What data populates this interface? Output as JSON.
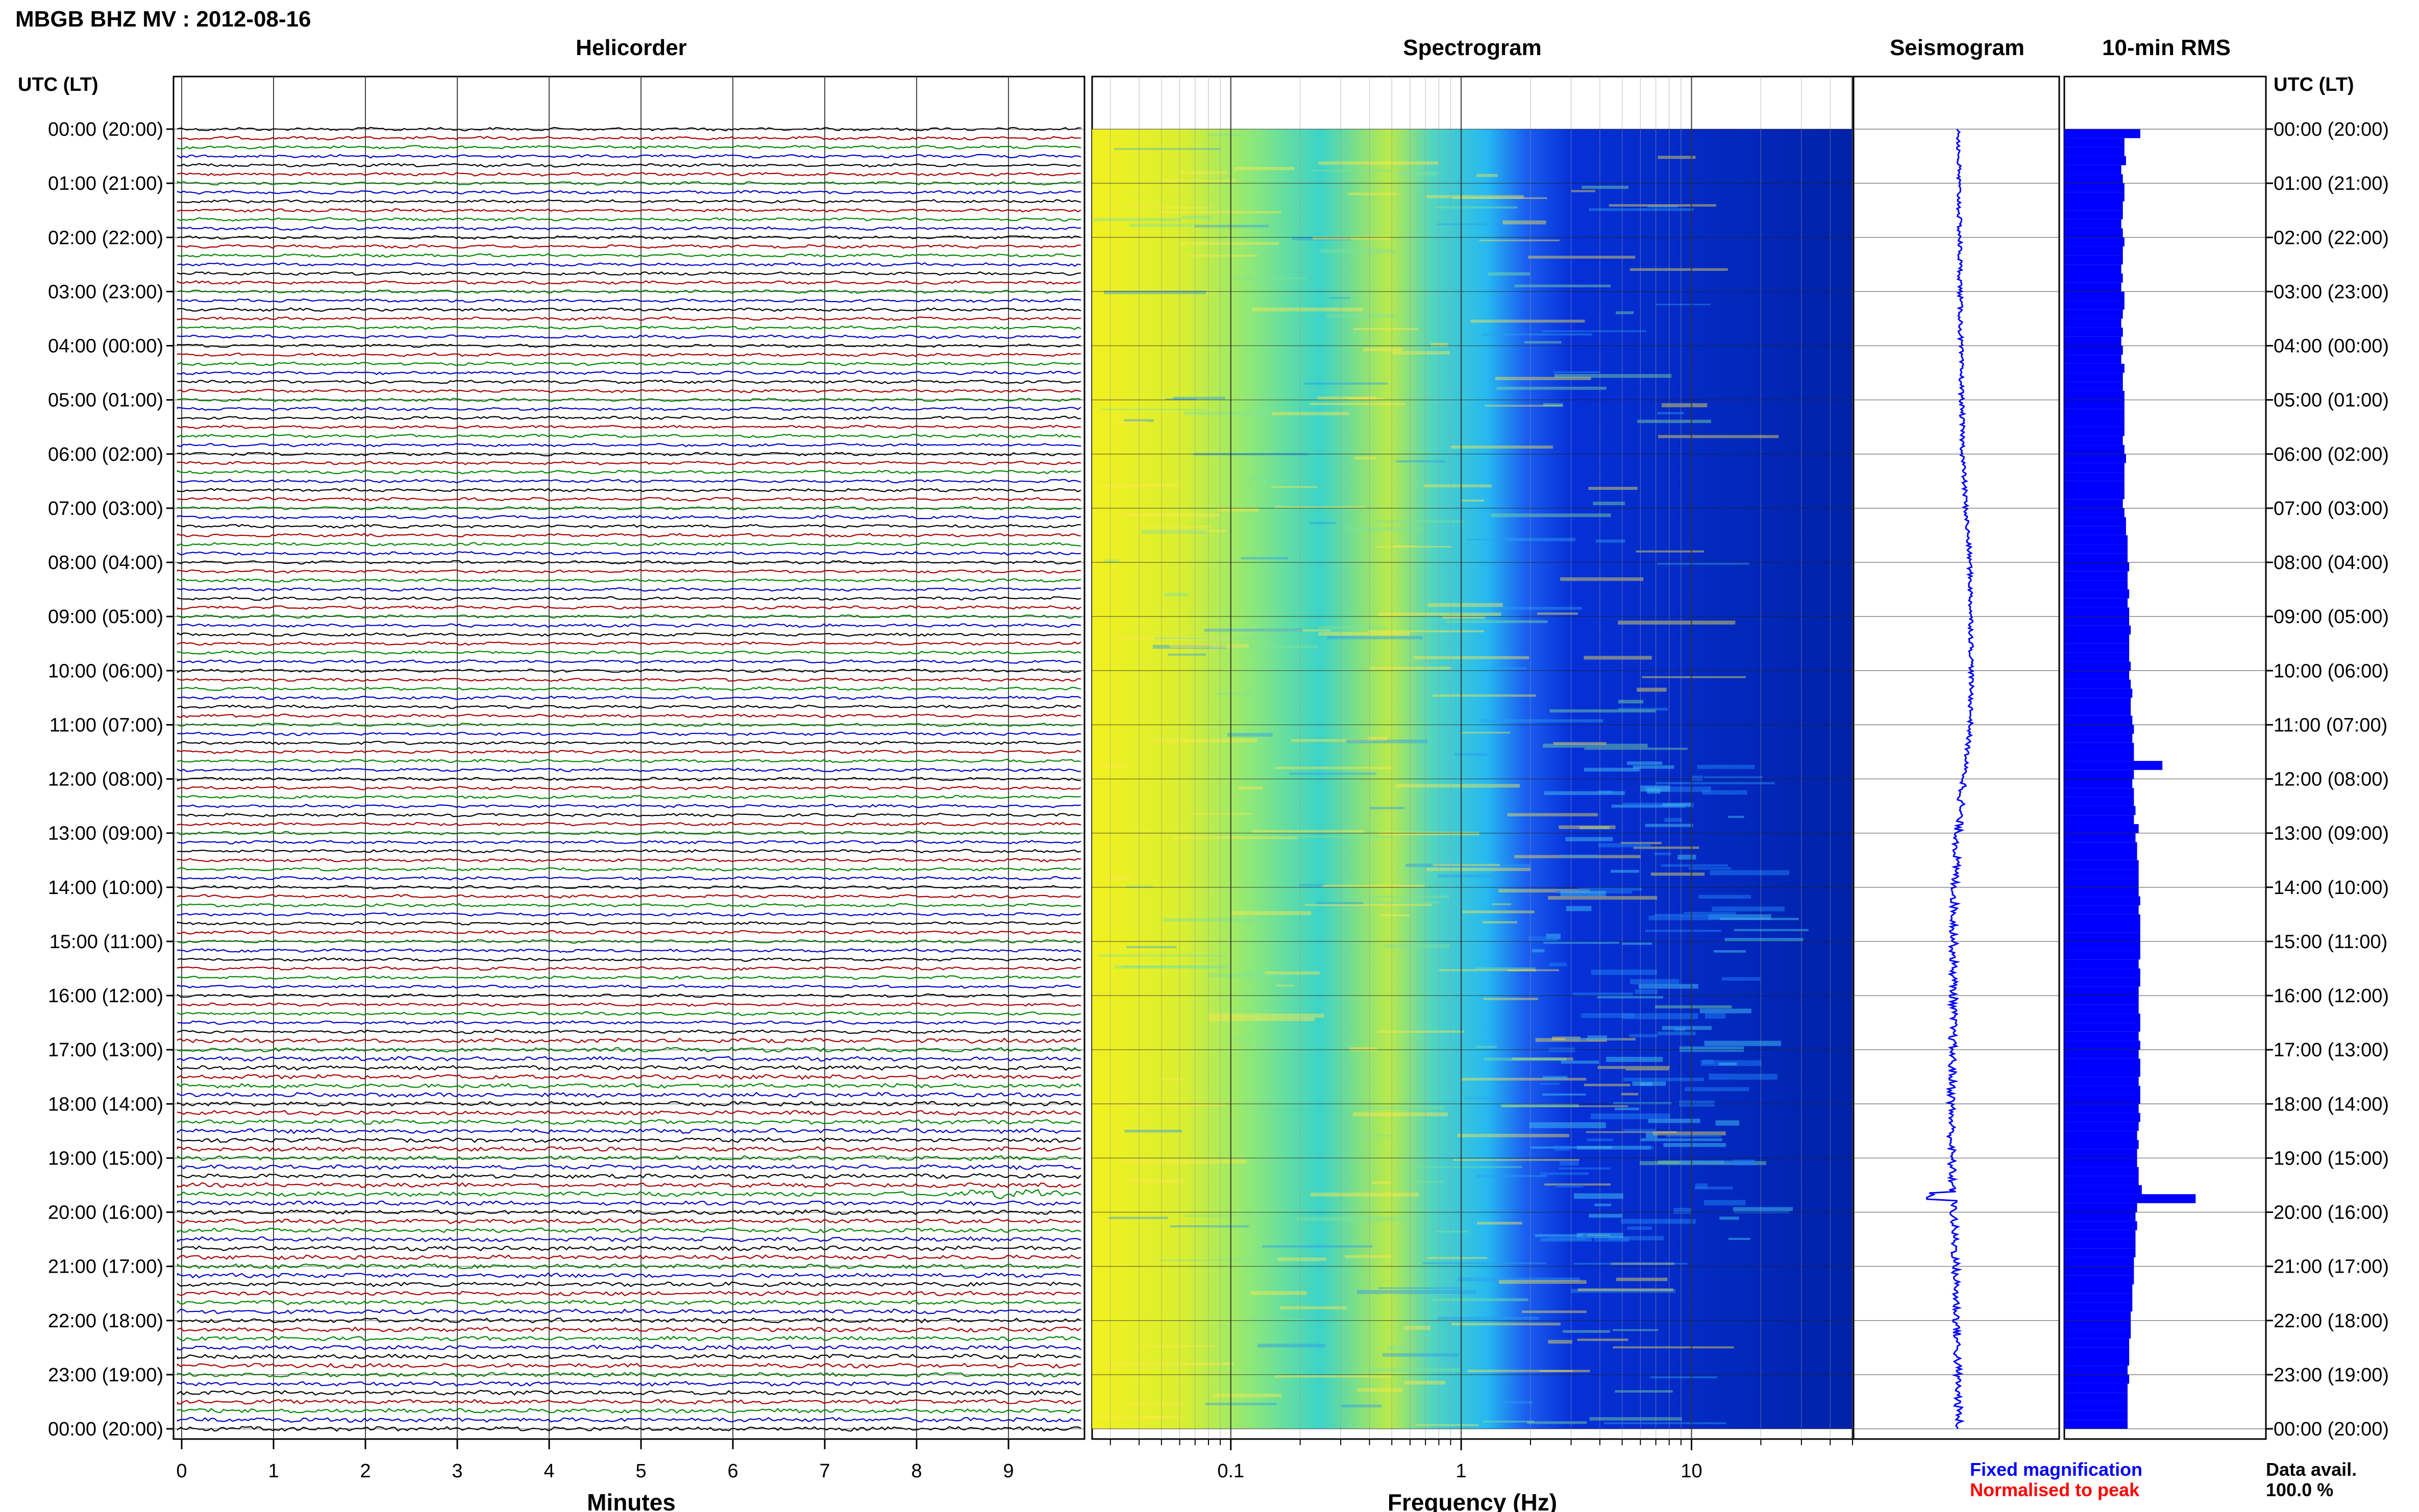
{
  "header": {
    "station_title": "MBGB BHZ MV : 2012-08-16",
    "panel_titles": {
      "helicorder": "Helicorder",
      "spectrogram": "Spectrogram",
      "seismogram": "Seismogram",
      "rms": "10-min RMS"
    },
    "time_axis_label_left": "UTC (LT)",
    "time_axis_label_right": "UTC (LT)"
  },
  "time_labels": [
    "00:00 (20:00)",
    "01:00 (21:00)",
    "02:00 (22:00)",
    "03:00 (23:00)",
    "04:00 (00:00)",
    "05:00 (01:00)",
    "06:00 (02:00)",
    "07:00 (03:00)",
    "08:00 (04:00)",
    "09:00 (05:00)",
    "10:00 (06:00)",
    "11:00 (07:00)",
    "12:00 (08:00)",
    "13:00 (09:00)",
    "14:00 (10:00)",
    "15:00 (11:00)",
    "16:00 (12:00)",
    "17:00 (13:00)",
    "18:00 (14:00)",
    "19:00 (15:00)",
    "20:00 (16:00)",
    "21:00 (17:00)",
    "22:00 (18:00)",
    "23:00 (19:00)",
    "00:00 (20:00)"
  ],
  "footer": {
    "minutes_label": "Minutes",
    "frequency_label": "Frequency (Hz)",
    "legend_fixed": "Fixed magnification",
    "legend_normalised": "Normalised to peak",
    "data_avail_label": "Data avail.",
    "data_avail_value": "100.0 %"
  },
  "colors": {
    "legend_fixed": "#0000ff",
    "legend_normalised": "#ff0000",
    "helicorder_traces": [
      "#000000",
      "#aa0000",
      "#008800",
      "#0000cc"
    ],
    "rms_bars": "#0000ff",
    "seismogram_trace": "#0000ff"
  },
  "chart_data": [
    {
      "type": "line",
      "panel": "helicorder",
      "title": "Helicorder",
      "xlabel": "Minutes",
      "ylabel": "UTC (LT)",
      "x_ticks": [
        "0",
        "1",
        "2",
        "3",
        "4",
        "5",
        "6",
        "7",
        "8",
        "9"
      ],
      "xlim": [
        0,
        10
      ],
      "traces_per_hour": 6,
      "total_traces": 145,
      "trace_color_cycle": [
        "black",
        "dark-red",
        "green",
        "blue"
      ],
      "notable_event": "19:50 (15:50)"
    },
    {
      "type": "heatmap",
      "panel": "spectrogram",
      "title": "Spectrogram",
      "xlabel": "Frequency (Hz)",
      "x_scale": "log",
      "x_ticks": [
        "0.1",
        "1",
        "10"
      ],
      "xlim": [
        0.025,
        50
      ],
      "colormap": "jet (low = dark blue, high = yellow)"
    },
    {
      "type": "line",
      "panel": "seismogram",
      "title": "Seismogram",
      "note": "24-hour long-period trace, drifting right until ~08:00–11:00 then back left, spike near 19:40"
    },
    {
      "type": "bar",
      "panel": "rms",
      "title": "10-min RMS",
      "orientation": "horizontal",
      "bin_minutes": 10,
      "values": [
        48,
        38,
        38,
        39,
        36,
        37,
        38,
        38,
        37,
        37,
        36,
        37,
        38,
        37,
        37,
        36,
        37,
        36,
        38,
        38,
        37,
        36,
        37,
        36,
        37,
        36,
        38,
        37,
        37,
        38,
        38,
        38,
        38,
        38,
        37,
        38,
        39,
        38,
        38,
        38,
        38,
        37,
        38,
        39,
        39,
        40,
        40,
        40,
        41,
        40,
        40,
        41,
        40,
        41,
        41,
        42,
        41,
        41,
        41,
        42,
        41,
        42,
        43,
        42,
        42,
        43,
        44,
        43,
        44,
        44,
        62,
        44,
        43,
        44,
        44,
        45,
        44,
        47,
        45,
        46,
        46,
        47,
        47,
        47,
        47,
        48,
        47,
        48,
        48,
        48,
        48,
        48,
        47,
        48,
        48,
        47,
        47,
        47,
        48,
        48,
        47,
        48,
        47,
        48,
        48,
        47,
        48,
        48,
        47,
        48,
        47,
        46,
        47,
        46,
        46,
        47,
        47,
        49,
        83,
        46,
        45,
        46,
        45,
        45,
        45,
        44,
        44,
        44,
        43,
        43,
        43,
        42,
        42,
        42,
        41,
        41,
        41,
        40,
        41,
        40,
        40,
        40,
        40,
        40,
        40,
        40
      ],
      "peaks": [
        {
          "time": "00:00",
          "value": 48
        },
        {
          "time": "11:40",
          "value": 62
        },
        {
          "time": "19:40",
          "value": 83
        }
      ]
    }
  ]
}
